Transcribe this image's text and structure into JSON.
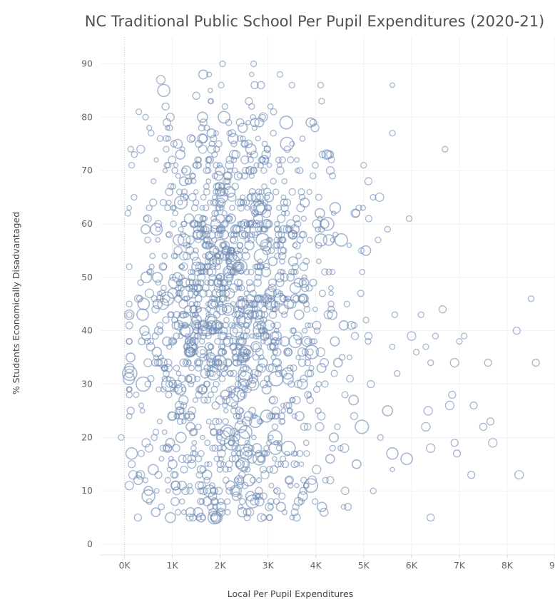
{
  "chart_data": {
    "type": "scatter",
    "title": "NC Traditional Public School Per Pupil Expenditures (2020-21)",
    "xlabel": "Local Per Pupil Expenditures",
    "ylabel": "% Students Economically Disadvantaged",
    "xlim": [
      -500,
      9000
    ],
    "ylim": [
      -2,
      95
    ],
    "x_ticks": [
      0,
      1000,
      2000,
      3000,
      4000,
      5000,
      6000,
      7000,
      8000,
      9000
    ],
    "x_tick_labels": [
      "0K",
      "1K",
      "2K",
      "3K",
      "4K",
      "5K",
      "6K",
      "7K",
      "8K",
      "9K"
    ],
    "y_ticks": [
      0,
      10,
      20,
      30,
      40,
      50,
      60,
      70,
      80,
      90
    ],
    "y_tick_labels": [
      "0",
      "10",
      "20",
      "30",
      "40",
      "50",
      "60",
      "70",
      "80",
      "90"
    ],
    "grid": true,
    "marker": "hollow circle, size varies by school",
    "color": "#6d8bb5",
    "point_count_approx": 1600,
    "points": [
      [
        -70,
        20,
        4
      ],
      [
        110,
        32,
        10
      ],
      [
        90,
        31,
        8
      ],
      [
        70,
        62,
        4
      ],
      [
        200,
        65,
        4
      ],
      [
        130,
        74,
        4
      ],
      [
        150,
        71,
        4
      ],
      [
        130,
        25,
        5
      ],
      [
        150,
        17,
        8
      ],
      [
        150,
        15,
        5
      ],
      [
        180,
        13,
        6
      ],
      [
        280,
        5,
        5
      ],
      [
        300,
        81,
        4
      ],
      [
        440,
        80,
        4
      ],
      [
        330,
        13,
        6
      ],
      [
        380,
        43,
        8
      ],
      [
        400,
        45,
        8
      ],
      [
        450,
        39,
        6
      ],
      [
        500,
        9,
        9
      ],
      [
        520,
        47,
        6
      ],
      [
        600,
        14,
        7
      ],
      [
        600,
        64,
        5
      ],
      [
        760,
        87,
        6
      ],
      [
        870,
        76,
        4
      ],
      [
        860,
        82,
        5
      ],
      [
        900,
        18,
        6
      ],
      [
        900,
        63,
        4
      ],
      [
        960,
        5,
        7
      ],
      [
        1050,
        70,
        4
      ],
      [
        1200,
        31,
        5
      ],
      [
        1250,
        66,
        4
      ],
      [
        1420,
        76,
        4
      ],
      [
        1500,
        84,
        5
      ],
      [
        1530,
        51,
        5
      ],
      [
        1580,
        52,
        6
      ],
      [
        1630,
        80,
        7
      ],
      [
        1650,
        79,
        5
      ],
      [
        1800,
        49,
        4
      ],
      [
        1880,
        5,
        9
      ],
      [
        1920,
        5,
        8
      ],
      [
        2020,
        86,
        4
      ],
      [
        2050,
        90,
        4
      ],
      [
        2100,
        82,
        4
      ],
      [
        2200,
        72,
        5
      ],
      [
        2250,
        77,
        5
      ],
      [
        2450,
        20,
        11
      ],
      [
        2530,
        21,
        9
      ],
      [
        2600,
        12,
        8
      ],
      [
        2600,
        83,
        5
      ],
      [
        2700,
        90,
        4
      ],
      [
        2720,
        86,
        5
      ],
      [
        2850,
        64,
        4
      ],
      [
        2960,
        73,
        6
      ],
      [
        3000,
        60,
        6
      ],
      [
        3050,
        47,
        8
      ],
      [
        3100,
        33,
        6
      ],
      [
        3250,
        88,
        4
      ],
      [
        3500,
        86,
        4
      ],
      [
        3600,
        56,
        5
      ],
      [
        3600,
        5,
        5
      ],
      [
        3720,
        30,
        7
      ],
      [
        3800,
        45,
        4
      ],
      [
        4100,
        86,
        4
      ],
      [
        4120,
        83,
        4
      ],
      [
        4100,
        36,
        6
      ],
      [
        4300,
        73,
        5
      ],
      [
        4200,
        12,
        4
      ],
      [
        4300,
        12,
        5
      ],
      [
        4350,
        18,
        4
      ],
      [
        4450,
        22,
        4
      ],
      [
        4550,
        35,
        4
      ],
      [
        4600,
        18,
        6
      ],
      [
        4650,
        45,
        4
      ],
      [
        4800,
        24,
        5
      ],
      [
        4800,
        41,
        4
      ],
      [
        4900,
        63,
        4
      ],
      [
        4950,
        55,
        4
      ],
      [
        5000,
        71,
        4
      ],
      [
        5050,
        42,
        4
      ],
      [
        5100,
        68,
        5
      ],
      [
        5100,
        39,
        5
      ],
      [
        5150,
        30,
        5
      ],
      [
        5200,
        10,
        4
      ],
      [
        5300,
        57,
        4
      ],
      [
        5350,
        20,
        4
      ],
      [
        5500,
        59,
        4
      ],
      [
        5600,
        77,
        4
      ],
      [
        5500,
        25,
        7
      ],
      [
        5600,
        17,
        8
      ],
      [
        5650,
        43,
        4
      ],
      [
        5700,
        32,
        4
      ],
      [
        5900,
        16,
        8
      ],
      [
        5950,
        61,
        4
      ],
      [
        6000,
        39,
        6
      ],
      [
        6100,
        36,
        4
      ],
      [
        6200,
        43,
        4
      ],
      [
        6300,
        37,
        4
      ],
      [
        6350,
        25,
        6
      ],
      [
        6400,
        18,
        6
      ],
      [
        6400,
        5,
        5
      ],
      [
        6500,
        39,
        4
      ],
      [
        6300,
        22,
        6
      ],
      [
        6400,
        34,
        4
      ],
      [
        6700,
        74,
        4
      ],
      [
        6650,
        44,
        5
      ],
      [
        6800,
        26,
        6
      ],
      [
        6850,
        28,
        5
      ],
      [
        6900,
        19,
        5
      ],
      [
        6900,
        34,
        6
      ],
      [
        6950,
        17,
        5
      ],
      [
        7000,
        38,
        4
      ],
      [
        7100,
        39,
        4
      ],
      [
        7250,
        13,
        5
      ],
      [
        7300,
        26,
        5
      ],
      [
        7500,
        22,
        5
      ],
      [
        7600,
        34,
        5
      ],
      [
        7650,
        23,
        5
      ],
      [
        7700,
        19,
        6
      ],
      [
        8200,
        40,
        5
      ],
      [
        8250,
        13,
        6
      ],
      [
        8500,
        46,
        4
      ],
      [
        8600,
        34,
        5
      ]
    ]
  }
}
